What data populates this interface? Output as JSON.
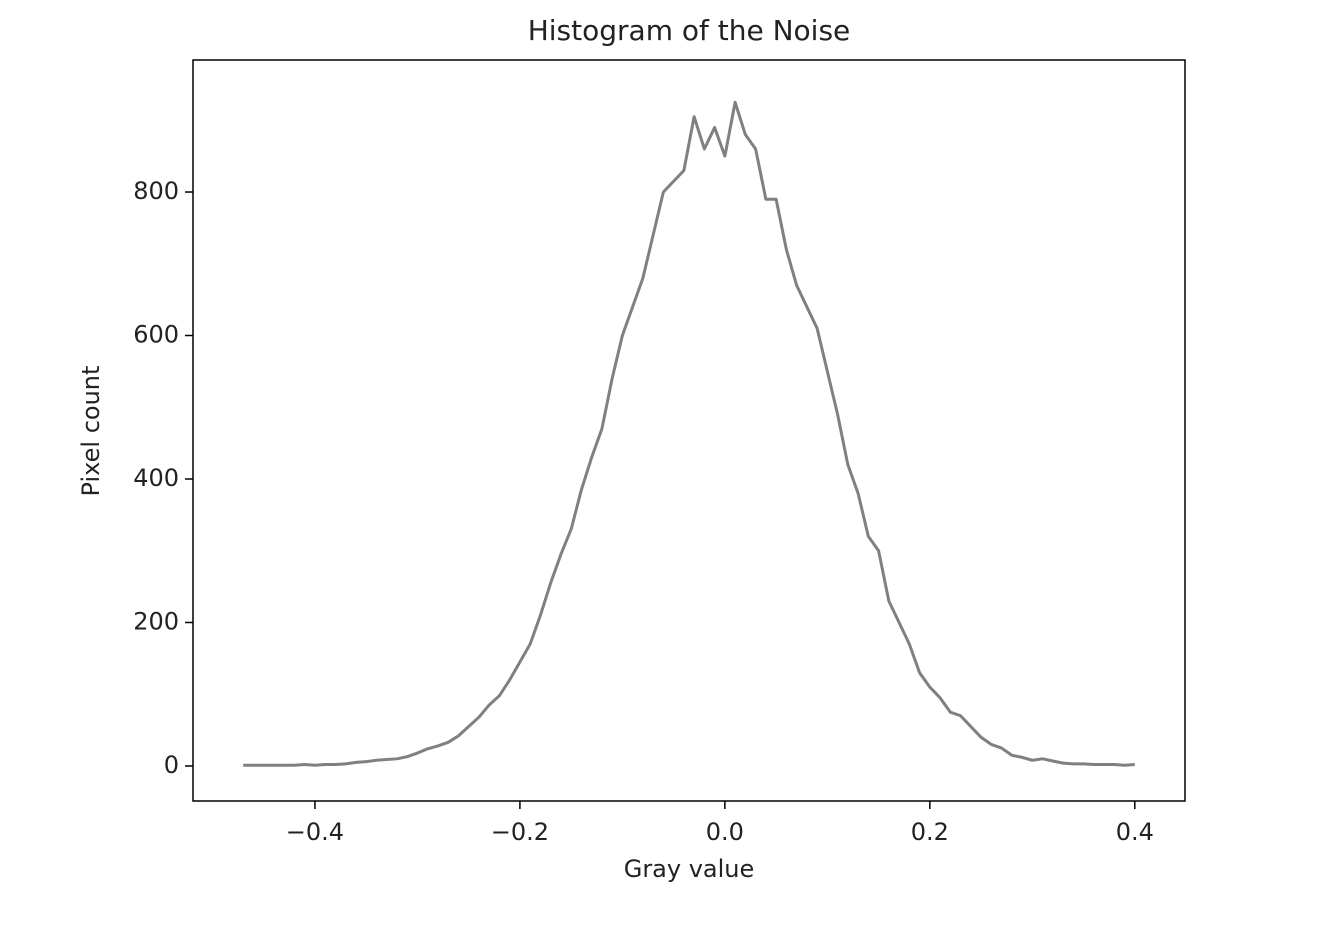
{
  "chart_data": {
    "type": "line",
    "title": "Histogram of the Noise",
    "x_label": "Gray value",
    "y_label": "Pixel count",
    "color": "#808080",
    "x": [
      -0.47,
      -0.46,
      -0.45,
      -0.44,
      -0.43,
      -0.42,
      -0.41,
      -0.4,
      -0.39,
      -0.38,
      -0.37,
      -0.36,
      -0.35,
      -0.34,
      -0.33,
      -0.32,
      -0.31,
      -0.3,
      -0.29,
      -0.28,
      -0.27,
      -0.26,
      -0.25,
      -0.24,
      -0.23,
      -0.22,
      -0.21,
      -0.2,
      -0.19,
      -0.18,
      -0.17,
      -0.16,
      -0.15,
      -0.14,
      -0.13,
      -0.12,
      -0.11,
      -0.1,
      -0.09,
      -0.08,
      -0.07,
      -0.06,
      -0.05,
      -0.04,
      -0.03,
      -0.02,
      -0.01,
      0.0,
      0.01,
      0.02,
      0.03,
      0.04,
      0.05,
      0.06,
      0.07,
      0.08,
      0.09,
      0.1,
      0.11,
      0.12,
      0.13,
      0.14,
      0.15,
      0.16,
      0.17,
      0.18,
      0.19,
      0.2,
      0.21,
      0.22,
      0.23,
      0.24,
      0.25,
      0.26,
      0.27,
      0.28,
      0.29,
      0.3,
      0.31,
      0.32,
      0.33,
      0.34,
      0.35,
      0.36,
      0.37,
      0.38,
      0.39,
      0.4
    ],
    "values": [
      1,
      1,
      1,
      1,
      1,
      1,
      2,
      1,
      2,
      2,
      3,
      5,
      6,
      8,
      9,
      10,
      13,
      18,
      24,
      28,
      33,
      42,
      55,
      68,
      85,
      98,
      120,
      145,
      170,
      210,
      255,
      295,
      330,
      385,
      430,
      470,
      540,
      600,
      640,
      680,
      740,
      800,
      815,
      830,
      905,
      860,
      890,
      850,
      925,
      880,
      860,
      790,
      790,
      720,
      670,
      640,
      610,
      550,
      490,
      420,
      380,
      320,
      300,
      230,
      200,
      170,
      130,
      110,
      95,
      75,
      70,
      55,
      40,
      30,
      25,
      15,
      12,
      8,
      10,
      7,
      4,
      3,
      3,
      2,
      2,
      2,
      1,
      2
    ],
    "xlim": [
      -0.519,
      0.449
    ],
    "ylim": [
      -48.8,
      984
    ],
    "xticks": [
      {
        "value": -0.4,
        "label": "−0.4"
      },
      {
        "value": -0.2,
        "label": "−0.2"
      },
      {
        "value": 0,
        "label": "0.0"
      },
      0.2,
      0.4
    ],
    "yticks": [
      0,
      200,
      400,
      600,
      800
    ]
  }
}
